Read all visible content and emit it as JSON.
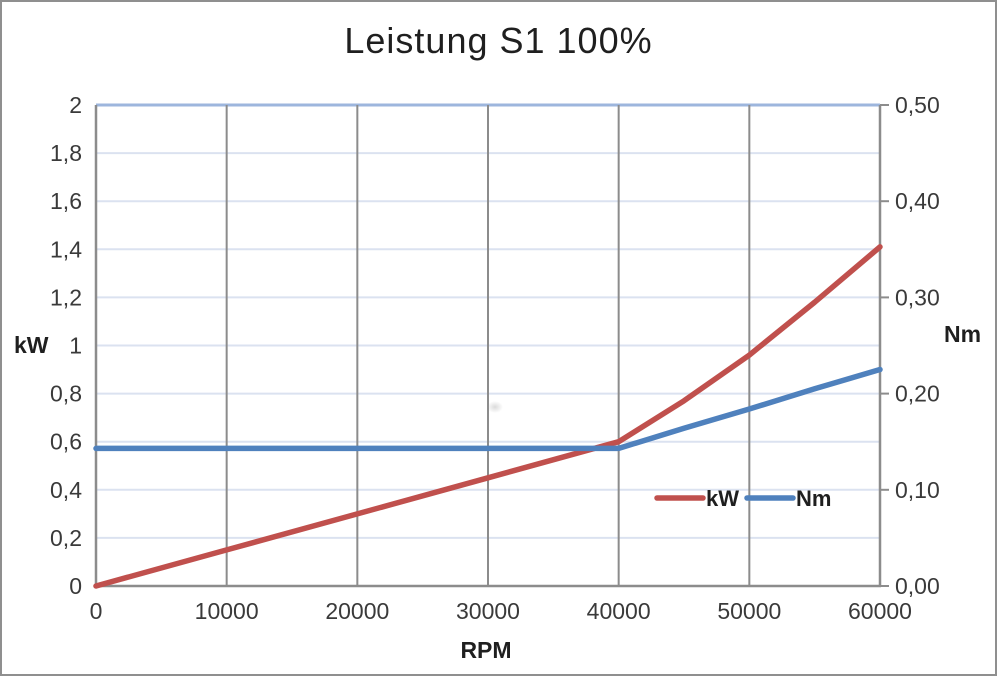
{
  "frame": {
    "border_color": "#8f8f8f",
    "background": "#ffffff"
  },
  "chart_data": {
    "type": "line",
    "title": "Leistung S1 100%",
    "x_axis": {
      "label": "RPM",
      "min": 0,
      "max": 60000,
      "tick_values": [
        0,
        10000,
        20000,
        30000,
        40000,
        50000,
        60000
      ],
      "tick_labels": [
        "0",
        "10000",
        "20000",
        "30000",
        "40000",
        "50000",
        "60000"
      ]
    },
    "y_left": {
      "label": "kW",
      "min": 0,
      "max": 2,
      "tick_values": [
        0,
        0.2,
        0.4,
        0.6,
        0.8,
        1,
        1.2,
        1.4,
        1.6,
        1.8,
        2
      ],
      "tick_labels": [
        "0",
        "0,2",
        "0,4",
        "0,6",
        "0,8",
        "1",
        "1,2",
        "1,4",
        "1,6",
        "1,8",
        "2"
      ]
    },
    "y_right": {
      "label": "Nm",
      "min": 0,
      "max": 0.5,
      "tick_values": [
        0,
        0.1,
        0.2,
        0.3,
        0.4,
        0.5
      ],
      "tick_labels": [
        "0,00",
        "0,10",
        "0,20",
        "0,30",
        "0,40",
        "0,50"
      ]
    },
    "grid": {
      "h_color": "#dbe2f0",
      "top_line_color": "#9db6dd",
      "v_color": "#8c8c8c",
      "axis_color": "#8c8c8c",
      "tick_label_color": "#3a3a3a"
    },
    "series": [
      {
        "name": "kW",
        "axis": "left",
        "color": "#c0504d",
        "points": [
          [
            0,
            0
          ],
          [
            10000,
            0.15
          ],
          [
            20000,
            0.3
          ],
          [
            30000,
            0.45
          ],
          [
            40000,
            0.6
          ],
          [
            45000,
            0.77
          ],
          [
            50000,
            0.96
          ],
          [
            55000,
            1.18
          ],
          [
            60000,
            1.41
          ]
        ]
      },
      {
        "name": "Nm",
        "axis": "right",
        "color": "#4f81bd",
        "points": [
          [
            0,
            0.143
          ],
          [
            10000,
            0.143
          ],
          [
            20000,
            0.143
          ],
          [
            30000,
            0.143
          ],
          [
            40000,
            0.143
          ],
          [
            45000,
            0.164
          ],
          [
            50000,
            0.184
          ],
          [
            55000,
            0.205
          ],
          [
            60000,
            0.225
          ]
        ]
      }
    ],
    "legend": {
      "position": "inside-bottom-right",
      "entries": [
        {
          "label": "kW",
          "color": "#c0504d"
        },
        {
          "label": "Nm",
          "color": "#4f81bd"
        }
      ]
    }
  }
}
